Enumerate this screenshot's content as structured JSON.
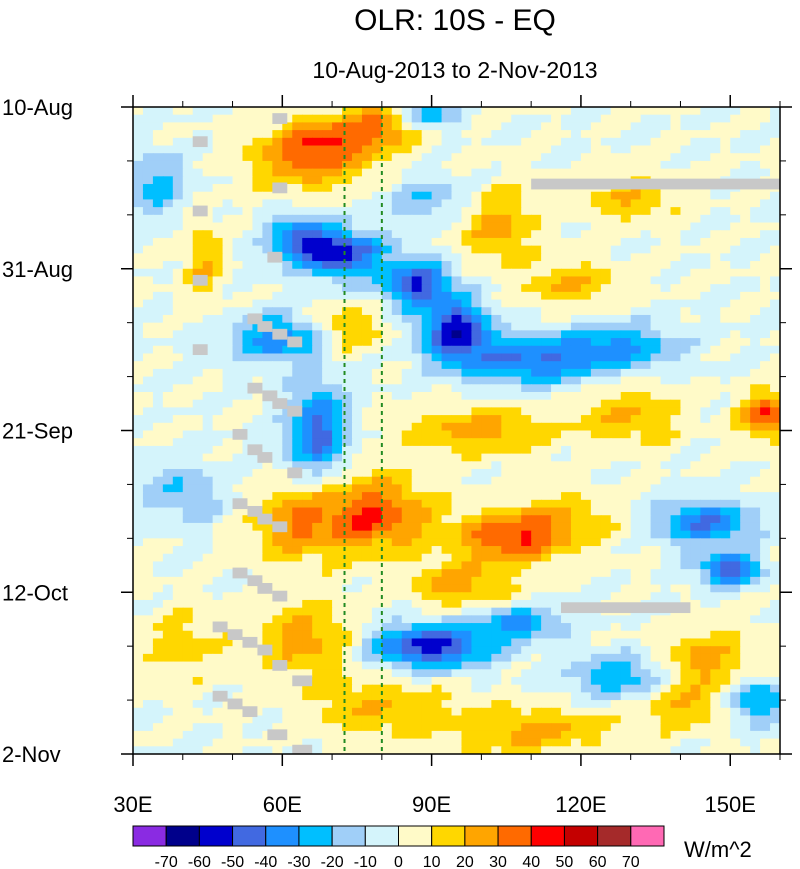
{
  "chart_data": {
    "type": "heatmap",
    "title": "OLR: 10S - EQ",
    "subtitle": "10-Aug-2013 to 2-Nov-2013",
    "x_axis": {
      "range": [
        30,
        160
      ],
      "unit": "degrees east longitude",
      "ticks": [
        {
          "value": 30,
          "label": "30E"
        },
        {
          "value": 60,
          "label": "60E"
        },
        {
          "value": 90,
          "label": "90E"
        },
        {
          "value": 120,
          "label": "120E"
        },
        {
          "value": 150,
          "label": "150E"
        }
      ],
      "minor_step": 10
    },
    "y_axis": {
      "range_days": [
        0,
        84
      ],
      "direction": "time increases downward",
      "ticks": [
        {
          "day": 0,
          "label": "10-Aug"
        },
        {
          "day": 21,
          "label": "31-Aug"
        },
        {
          "day": 42,
          "label": "21-Sep"
        },
        {
          "day": 63,
          "label": "12-Oct"
        },
        {
          "day": 84,
          "label": "2-Nov"
        }
      ],
      "minor_step_days": 7
    },
    "reference_lines": [
      {
        "lon": 72.5,
        "style": "dashed",
        "color": "#228b22"
      },
      {
        "lon": 80,
        "style": "dashed",
        "color": "#228b22"
      }
    ],
    "colorbar": {
      "unit_label": "W/m^2",
      "levels": [
        -70,
        -60,
        -50,
        -40,
        -30,
        -20,
        -10,
        0,
        10,
        20,
        30,
        40,
        50,
        60,
        70
      ],
      "level_labels": [
        "-70",
        "-60",
        "-50",
        "-40",
        "-30",
        "-20",
        "-10",
        "0",
        "10",
        "20",
        "30",
        "40",
        "50",
        "60",
        "70"
      ],
      "colors": [
        "#8a2be2",
        "#00008b",
        "#0000cd",
        "#4169e1",
        "#1e90ff",
        "#00bfff",
        "#a0cff8",
        "#d4f4fb",
        "#fffac8",
        "#ffd700",
        "#ffa500",
        "#ff6a00",
        "#ff0000",
        "#c40000",
        "#a52a2a",
        "#ff69b4"
      ]
    },
    "anomaly_features": [
      {
        "lon": 65,
        "day": 7,
        "value": 30,
        "rx": 12,
        "ry": 4
      },
      {
        "lon": 70,
        "day": 4,
        "value": 25,
        "rx": 10,
        "ry": 3
      },
      {
        "lon": 82,
        "day": 2,
        "value": 30,
        "rx": 8,
        "ry": 3
      },
      {
        "lon": 88,
        "day": 1,
        "value": -40,
        "rx": 6,
        "ry": 2
      },
      {
        "lon": 72,
        "day": 19,
        "value": -55,
        "rx": 8,
        "ry": 3
      },
      {
        "lon": 63,
        "day": 17,
        "value": -40,
        "rx": 6,
        "ry": 3
      },
      {
        "lon": 87,
        "day": 23,
        "value": -50,
        "rx": 7,
        "ry": 3
      },
      {
        "lon": 95,
        "day": 29,
        "value": -55,
        "rx": 7,
        "ry": 4
      },
      {
        "lon": 110,
        "day": 33,
        "value": -40,
        "rx": 14,
        "ry": 3
      },
      {
        "lon": 128,
        "day": 31,
        "value": -30,
        "rx": 12,
        "ry": 3
      },
      {
        "lon": 60,
        "day": 30,
        "value": -40,
        "rx": 10,
        "ry": 3
      },
      {
        "lon": 72,
        "day": 29,
        "value": 25,
        "rx": 8,
        "ry": 3
      },
      {
        "lon": 103,
        "day": 15,
        "value": 25,
        "rx": 8,
        "ry": 5
      },
      {
        "lon": 44,
        "day": 20,
        "value": 20,
        "rx": 4,
        "ry": 5
      },
      {
        "lon": 67,
        "day": 42,
        "value": -45,
        "rx": 6,
        "ry": 6
      },
      {
        "lon": 100,
        "day": 42,
        "value": 25,
        "rx": 15,
        "ry": 3
      },
      {
        "lon": 130,
        "day": 40,
        "value": 20,
        "rx": 10,
        "ry": 4
      },
      {
        "lon": 157,
        "day": 40,
        "value": 40,
        "rx": 5,
        "ry": 3
      },
      {
        "lon": 78,
        "day": 53,
        "value": 40,
        "rx": 12,
        "ry": 5
      },
      {
        "lon": 62,
        "day": 54,
        "value": 25,
        "rx": 8,
        "ry": 5
      },
      {
        "lon": 105,
        "day": 56,
        "value": 35,
        "rx": 10,
        "ry": 3
      },
      {
        "lon": 115,
        "day": 54,
        "value": 20,
        "rx": 12,
        "ry": 4
      },
      {
        "lon": 145,
        "day": 54,
        "value": -40,
        "rx": 10,
        "ry": 3
      },
      {
        "lon": 150,
        "day": 60,
        "value": -50,
        "rx": 6,
        "ry": 2
      },
      {
        "lon": 96,
        "day": 62,
        "value": 25,
        "rx": 10,
        "ry": 3
      },
      {
        "lon": 90,
        "day": 70,
        "value": -55,
        "rx": 12,
        "ry": 3
      },
      {
        "lon": 108,
        "day": 67,
        "value": -35,
        "rx": 8,
        "ry": 2
      },
      {
        "lon": 65,
        "day": 69,
        "value": 25,
        "rx": 10,
        "ry": 5
      },
      {
        "lon": 40,
        "day": 70,
        "value": 15,
        "rx": 8,
        "ry": 5
      },
      {
        "lon": 128,
        "day": 74,
        "value": -30,
        "rx": 10,
        "ry": 3
      },
      {
        "lon": 145,
        "day": 72,
        "value": 25,
        "rx": 10,
        "ry": 4
      },
      {
        "lon": 155,
        "day": 77,
        "value": -35,
        "rx": 6,
        "ry": 3
      },
      {
        "lon": 80,
        "day": 78,
        "value": 20,
        "rx": 15,
        "ry": 4
      },
      {
        "lon": 110,
        "day": 81,
        "value": 25,
        "rx": 15,
        "ry": 3
      },
      {
        "lon": 140,
        "day": 78,
        "value": 20,
        "rx": 10,
        "ry": 3
      },
      {
        "lon": 35,
        "day": 10,
        "value": -25,
        "rx": 6,
        "ry": 4
      },
      {
        "lon": 40,
        "day": 50,
        "value": -20,
        "rx": 8,
        "ry": 4
      },
      {
        "lon": 90,
        "day": 12,
        "value": -20,
        "rx": 10,
        "ry": 3
      },
      {
        "lon": 130,
        "day": 12,
        "value": 20,
        "rx": 10,
        "ry": 3
      },
      {
        "lon": 118,
        "day": 23,
        "value": 20,
        "rx": 10,
        "ry": 3
      }
    ],
    "missing_data": [
      {
        "lon_start": 58,
        "lon_end": 61,
        "day": 1.5
      },
      {
        "lon_start": 42,
        "lon_end": 45,
        "day": 4.5
      },
      {
        "lon_start": 58,
        "lon_end": 61,
        "day": 10.5
      },
      {
        "lon_start": 42,
        "lon_end": 45,
        "day": 13.5
      },
      {
        "lon_start": 57,
        "lon_end": 60,
        "day": 19.5
      },
      {
        "lon_start": 42,
        "lon_end": 45,
        "day": 22.5
      },
      {
        "lon_start": 53,
        "lon_end": 56,
        "day": 27.5
      },
      {
        "lon_start": 55,
        "lon_end": 58,
        "day": 28.5
      },
      {
        "lon_start": 58,
        "lon_end": 61,
        "day": 29.5
      },
      {
        "lon_start": 61,
        "lon_end": 64,
        "day": 30.5
      },
      {
        "lon_start": 42,
        "lon_end": 45,
        "day": 31.5
      },
      {
        "lon_start": 53,
        "lon_end": 56,
        "day": 36.5
      },
      {
        "lon_start": 56,
        "lon_end": 59,
        "day": 37.5
      },
      {
        "lon_start": 58,
        "lon_end": 61,
        "day": 38.5
      },
      {
        "lon_start": 61,
        "lon_end": 64,
        "day": 39.5
      },
      {
        "lon_start": 50,
        "lon_end": 53,
        "day": 42.5
      },
      {
        "lon_start": 53,
        "lon_end": 56,
        "day": 44.5
      },
      {
        "lon_start": 55,
        "lon_end": 58,
        "day": 45.5
      },
      {
        "lon_start": 61,
        "lon_end": 64,
        "day": 47.5
      },
      {
        "lon_start": 50,
        "lon_end": 53,
        "day": 51.5
      },
      {
        "lon_start": 53,
        "lon_end": 56,
        "day": 52.5
      },
      {
        "lon_start": 55,
        "lon_end": 58,
        "day": 53.5
      },
      {
        "lon_start": 58,
        "lon_end": 61,
        "day": 54.5
      },
      {
        "lon_start": 50,
        "lon_end": 53,
        "day": 60.5
      },
      {
        "lon_start": 53,
        "lon_end": 56,
        "day": 61.5
      },
      {
        "lon_start": 55,
        "lon_end": 58,
        "day": 62.5
      },
      {
        "lon_start": 58,
        "lon_end": 61,
        "day": 63.5
      },
      {
        "lon_start": 46,
        "lon_end": 49,
        "day": 67.5
      },
      {
        "lon_start": 49,
        "lon_end": 52,
        "day": 68.5
      },
      {
        "lon_start": 52,
        "lon_end": 55,
        "day": 69.5
      },
      {
        "lon_start": 55,
        "lon_end": 58,
        "day": 70.5
      },
      {
        "lon_start": 58,
        "lon_end": 61,
        "day": 72.5
      },
      {
        "lon_start": 62,
        "lon_end": 66,
        "day": 74.5
      },
      {
        "lon_start": 46,
        "lon_end": 49,
        "day": 76.5
      },
      {
        "lon_start": 49,
        "lon_end": 52,
        "day": 77.5
      },
      {
        "lon_start": 52,
        "lon_end": 55,
        "day": 78.5
      },
      {
        "lon_start": 57,
        "lon_end": 61,
        "day": 81.5
      },
      {
        "lon_start": 62,
        "lon_end": 66,
        "day": 83.5
      },
      {
        "lon_start": 110,
        "lon_end": 160,
        "day": 10
      },
      {
        "lon_start": 116,
        "lon_end": 142,
        "day": 65
      }
    ]
  }
}
